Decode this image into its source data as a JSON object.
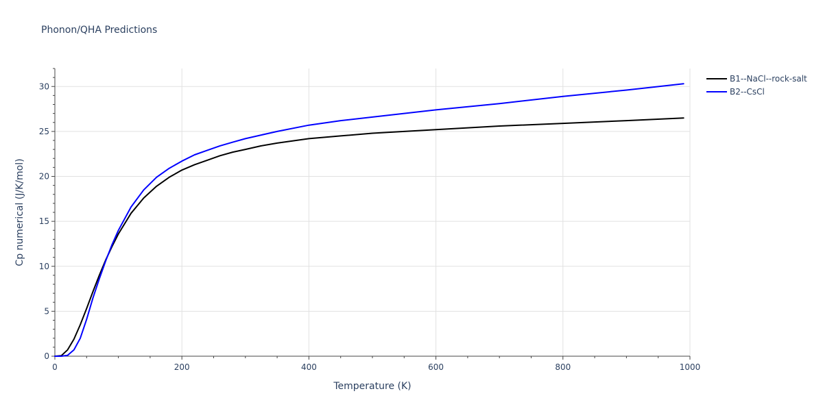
{
  "chart_data": {
    "type": "line",
    "title": "Phonon/QHA Predictions",
    "xlabel": "Temperature (K)",
    "ylabel": "Cp numerical (J/K/mol)",
    "xlim": [
      0,
      1000
    ],
    "ylim": [
      0,
      32
    ],
    "xticks": [
      0,
      200,
      400,
      600,
      800,
      1000
    ],
    "yticks": [
      0,
      5,
      10,
      15,
      20,
      25,
      30
    ],
    "grid": true,
    "legend_position": "top-right outside",
    "series": [
      {
        "name": "B1--NaCl--rock-salt",
        "color": "#000000",
        "x": [
          0,
          10,
          20,
          30,
          40,
          50,
          60,
          70,
          80,
          90,
          100,
          120,
          140,
          160,
          180,
          200,
          220,
          240,
          260,
          280,
          300,
          325,
          350,
          400,
          450,
          500,
          600,
          700,
          800,
          900,
          990
        ],
        "y": [
          0,
          0.05,
          0.7,
          1.9,
          3.5,
          5.3,
          7.2,
          9.0,
          10.7,
          12.2,
          13.6,
          15.9,
          17.6,
          18.9,
          19.9,
          20.7,
          21.3,
          21.8,
          22.3,
          22.7,
          23.0,
          23.4,
          23.7,
          24.2,
          24.5,
          24.8,
          25.2,
          25.6,
          25.9,
          26.2,
          26.5
        ]
      },
      {
        "name": "B2--CsCl",
        "color": "#0000ff",
        "x": [
          0,
          10,
          20,
          30,
          40,
          50,
          60,
          70,
          80,
          90,
          100,
          120,
          140,
          160,
          180,
          200,
          220,
          240,
          260,
          280,
          300,
          325,
          350,
          400,
          450,
          500,
          600,
          700,
          800,
          900,
          990
        ],
        "y": [
          0,
          0.0,
          0.1,
          0.7,
          2.0,
          4.1,
          6.5,
          8.6,
          10.6,
          12.4,
          14.0,
          16.6,
          18.5,
          19.9,
          20.9,
          21.7,
          22.4,
          22.9,
          23.4,
          23.8,
          24.2,
          24.6,
          25.0,
          25.7,
          26.2,
          26.6,
          27.4,
          28.1,
          28.9,
          29.6,
          30.3
        ]
      }
    ]
  }
}
